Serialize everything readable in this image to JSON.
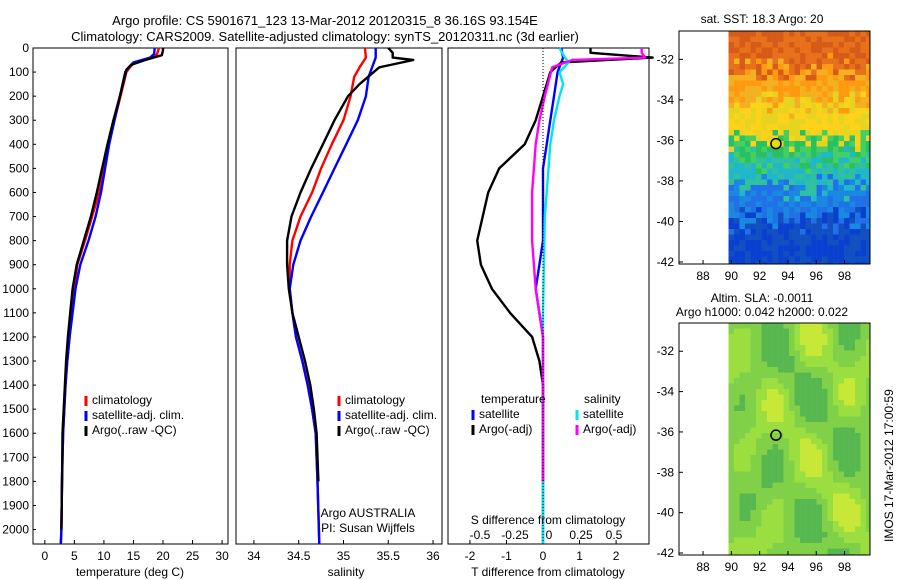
{
  "header": {
    "line1": "Argo profile: CS 5901671_123 13-Mar-2012 20120315_8 36.16S 93.154E",
    "line2": "Climatology: CARS2009. Satellite-adjusted climatology: synTS_20120311.nc (3d earlier)"
  },
  "panel_temp": {
    "xlabel": "temperature (deg C)",
    "xticks": [
      "0",
      "5",
      "10",
      "15",
      "20",
      "25",
      "30"
    ]
  },
  "panel_sal": {
    "xlabel": "salinity",
    "xticks": [
      "34",
      "34.5",
      "35",
      "35.5",
      "36"
    ],
    "credit1": "Argo AUSTRALIA",
    "credit2": "PI: Susan Wijffels"
  },
  "panel_diff": {
    "xlabel": "T difference from climatology",
    "xticks_bottom": [
      "-2",
      "-1",
      "0",
      "1",
      "2"
    ],
    "xlabel_top": "S difference from climatology",
    "xticks_top": [
      "-0.5",
      "-0.25",
      "0",
      "0.25",
      "0.5"
    ]
  },
  "depth_ticks": [
    "0",
    "100",
    "200",
    "300",
    "400",
    "500",
    "600",
    "700",
    "800",
    "900",
    "1000",
    "1100",
    "1200",
    "1300",
    "1400",
    "1500",
    "1600",
    "1700",
    "1800",
    "1900",
    "2000"
  ],
  "legend_ts": [
    "climatology",
    "satellite-adj. clim.",
    "Argo(..raw -QC)"
  ],
  "legend_diff": {
    "temp_title": "temperature",
    "sal_title": "salinity",
    "temp_items": [
      "satellite",
      "Argo(-adj)"
    ],
    "sal_items": [
      "satellite",
      "Argo(-adj)"
    ]
  },
  "map_sst": {
    "title": "sat. SST: 18.3 Argo: 20"
  },
  "map_sla": {
    "title1": "Altim. SLA: -0.0011",
    "title2": "Argo h1000: 0.042 h2000: 0.022"
  },
  "map_yticks": [
    "-32",
    "-34",
    "-36",
    "-38",
    "-40",
    "-42"
  ],
  "map_xticks": [
    "88",
    "90",
    "92",
    "94",
    "96",
    "98"
  ],
  "side_stamp": "IMOS 17-Mar-2012 17:00:59",
  "colors": {
    "climatology": "#ff0000",
    "satellite": "#0000ff",
    "argo": "#000000",
    "sat_sal": "#00e5ee",
    "argo_sal": "#ff00ff"
  },
  "chart_data": [
    {
      "type": "line",
      "xlabel": "temperature (deg C)",
      "ylabel": "",
      "xlim": [
        -2,
        31
      ],
      "ylim": [
        2060,
        0
      ],
      "series": [
        {
          "name": "climatology",
          "x": [
            19.3,
            19.0,
            18.3,
            15.2,
            14.4,
            13.8,
            12.8,
            11.8,
            10.8,
            10.0,
            9.2,
            8.0,
            6.8,
            5.5,
            5.0,
            4.6,
            4.2,
            3.8,
            3.5,
            3.3,
            3.1,
            2.9,
            2.8,
            2.7
          ],
          "y": [
            0,
            25,
            40,
            60,
            80,
            100,
            200,
            300,
            400,
            500,
            600,
            700,
            800,
            900,
            1000,
            1100,
            1200,
            1300,
            1400,
            1500,
            1600,
            1800,
            2000,
            2060
          ]
        },
        {
          "name": "satellite-adj. clim.",
          "x": [
            18.6,
            18.5,
            17.8,
            15.0,
            14.2,
            13.6,
            12.7,
            11.8,
            10.9,
            10.2,
            9.5,
            8.6,
            7.4,
            6.0,
            5.2,
            4.7,
            4.2,
            3.8,
            3.5,
            3.3,
            3.1,
            2.9,
            2.8,
            2.7
          ],
          "y": [
            0,
            25,
            40,
            60,
            80,
            100,
            200,
            300,
            400,
            500,
            600,
            700,
            800,
            900,
            1000,
            1100,
            1200,
            1300,
            1400,
            1500,
            1600,
            1800,
            2000,
            2060
          ]
        },
        {
          "name": "Argo(..raw -QC)",
          "x": [
            20.0,
            20.0,
            19.8,
            17.0,
            14.6,
            13.8,
            12.7,
            11.6,
            10.6,
            9.7,
            8.8,
            7.8,
            6.6,
            5.4,
            4.7,
            4.3,
            3.9,
            3.6,
            3.4,
            3.2,
            3.0,
            2.9,
            2.8
          ],
          "y": [
            0,
            10,
            30,
            50,
            70,
            90,
            200,
            300,
            400,
            500,
            600,
            700,
            800,
            900,
            1000,
            1100,
            1200,
            1300,
            1400,
            1500,
            1600,
            1800,
            2000
          ]
        }
      ]
    },
    {
      "type": "line",
      "xlabel": "salinity",
      "ylabel": "",
      "xlim": [
        33.8,
        36.1
      ],
      "ylim": [
        2060,
        0
      ],
      "series": [
        {
          "name": "climatology",
          "x": [
            35.24,
            35.25,
            35.18,
            35.12,
            35.08,
            35.0,
            34.87,
            34.75,
            34.65,
            34.52,
            34.43,
            34.4,
            34.4,
            34.43,
            34.47,
            34.54,
            34.6,
            34.65,
            34.69,
            34.71,
            34.73
          ],
          "y": [
            0,
            40,
            80,
            120,
            200,
            300,
            400,
            500,
            600,
            700,
            800,
            900,
            1000,
            1100,
            1200,
            1300,
            1400,
            1500,
            1600,
            1800,
            2060
          ]
        },
        {
          "name": "satellite-adj. clim.",
          "x": [
            35.36,
            35.36,
            35.32,
            35.28,
            35.25,
            35.16,
            35.03,
            34.9,
            34.77,
            34.64,
            34.52,
            34.44,
            34.4,
            34.43,
            34.47,
            34.54,
            34.6,
            34.65,
            34.69,
            34.71,
            34.73
          ],
          "y": [
            0,
            40,
            80,
            120,
            200,
            300,
            400,
            500,
            600,
            700,
            800,
            900,
            1000,
            1100,
            1200,
            1300,
            1400,
            1500,
            1600,
            1800,
            2060
          ]
        },
        {
          "name": "Argo(..raw -QC)",
          "x": [
            35.5,
            35.55,
            35.55,
            35.78,
            35.4,
            35.18,
            35.05,
            34.9,
            34.77,
            34.64,
            34.52,
            34.42,
            34.37,
            34.37,
            34.39,
            34.43,
            34.5,
            34.57,
            34.63,
            34.67,
            34.7,
            34.72
          ],
          "y": [
            0,
            20,
            40,
            50,
            80,
            150,
            200,
            300,
            400,
            500,
            600,
            700,
            800,
            900,
            1000,
            1100,
            1200,
            1300,
            1400,
            1500,
            1600,
            1800
          ]
        }
      ]
    },
    {
      "type": "line",
      "xlabel": "T difference from climatology",
      "ylabel": "",
      "xlim": [
        -2.6,
        2.9
      ],
      "ylim": [
        2060,
        0
      ],
      "x2label": "S difference from climatology",
      "series": [
        {
          "name": "satellite",
          "x": [
            0.5,
            0.55,
            0.4,
            0.3,
            0.2,
            0.1,
            0.0,
            0.0,
            0.0,
            0.0,
            -0.1,
            -0.2,
            -0.1,
            0.0,
            0.0,
            0.0,
            0.0,
            0.0
          ],
          "y": [
            0,
            40,
            100,
            200,
            300,
            400,
            500,
            600,
            700,
            800,
            900,
            1000,
            1100,
            1200,
            1400,
            1600,
            1800,
            2060
          ]
        },
        {
          "name": "Argo(-adj)",
          "x": [
            1.3,
            1.3,
            3.0,
            0.5,
            0.2,
            0.0,
            -0.2,
            -0.5,
            -1.2,
            -1.5,
            -1.8,
            -1.7,
            -1.4,
            -0.9,
            -0.3,
            -0.1,
            0.0,
            0.0,
            0.0
          ],
          "y": [
            0,
            20,
            40,
            60,
            100,
            200,
            300,
            400,
            500,
            600,
            800,
            900,
            1000,
            1100,
            1200,
            1300,
            1400,
            1600,
            1800
          ]
        },
        {
          "name": "satellite",
          "x": [
            0.45,
            0.6,
            0.7,
            0.45,
            0.55,
            0.45,
            0.3,
            0.2,
            0.15,
            0.1,
            0.05,
            0.0,
            0.0
          ],
          "y": [
            0,
            40,
            60,
            100,
            150,
            200,
            300,
            400,
            500,
            600,
            700,
            1100,
            2060
          ]
        },
        {
          "name": "Argo(-adj)",
          "x": [
            2.7,
            2.7,
            2.8,
            0.8,
            0.25,
            0.05,
            -0.1,
            -0.2,
            -0.3,
            -0.3,
            -0.2,
            -0.1,
            0.0,
            0.0
          ],
          "y": [
            0,
            20,
            40,
            50,
            80,
            200,
            300,
            400,
            600,
            800,
            1000,
            1100,
            1200,
            1800
          ]
        }
      ]
    },
    {
      "type": "heatmap",
      "title": "sat. SST: 18.3 Argo: 20",
      "xlim": [
        86.3,
        99.8
      ],
      "ylim": [
        -42.1,
        -30.6
      ],
      "note": "SST field: warm (orange/red) in the north, yellow band, green/cyan near -36, blue south of -38",
      "marker": {
        "lon": 93.154,
        "lat": -36.16
      }
    },
    {
      "type": "heatmap",
      "title": "Altim. SLA: -0.0011",
      "xlim": [
        86.3,
        99.8
      ],
      "ylim": [
        -42.1,
        -30.6
      ],
      "note": "SLA field: mostly green with darker green eddies and yellow patches",
      "marker": {
        "lon": 93.154,
        "lat": -36.16
      }
    }
  ]
}
